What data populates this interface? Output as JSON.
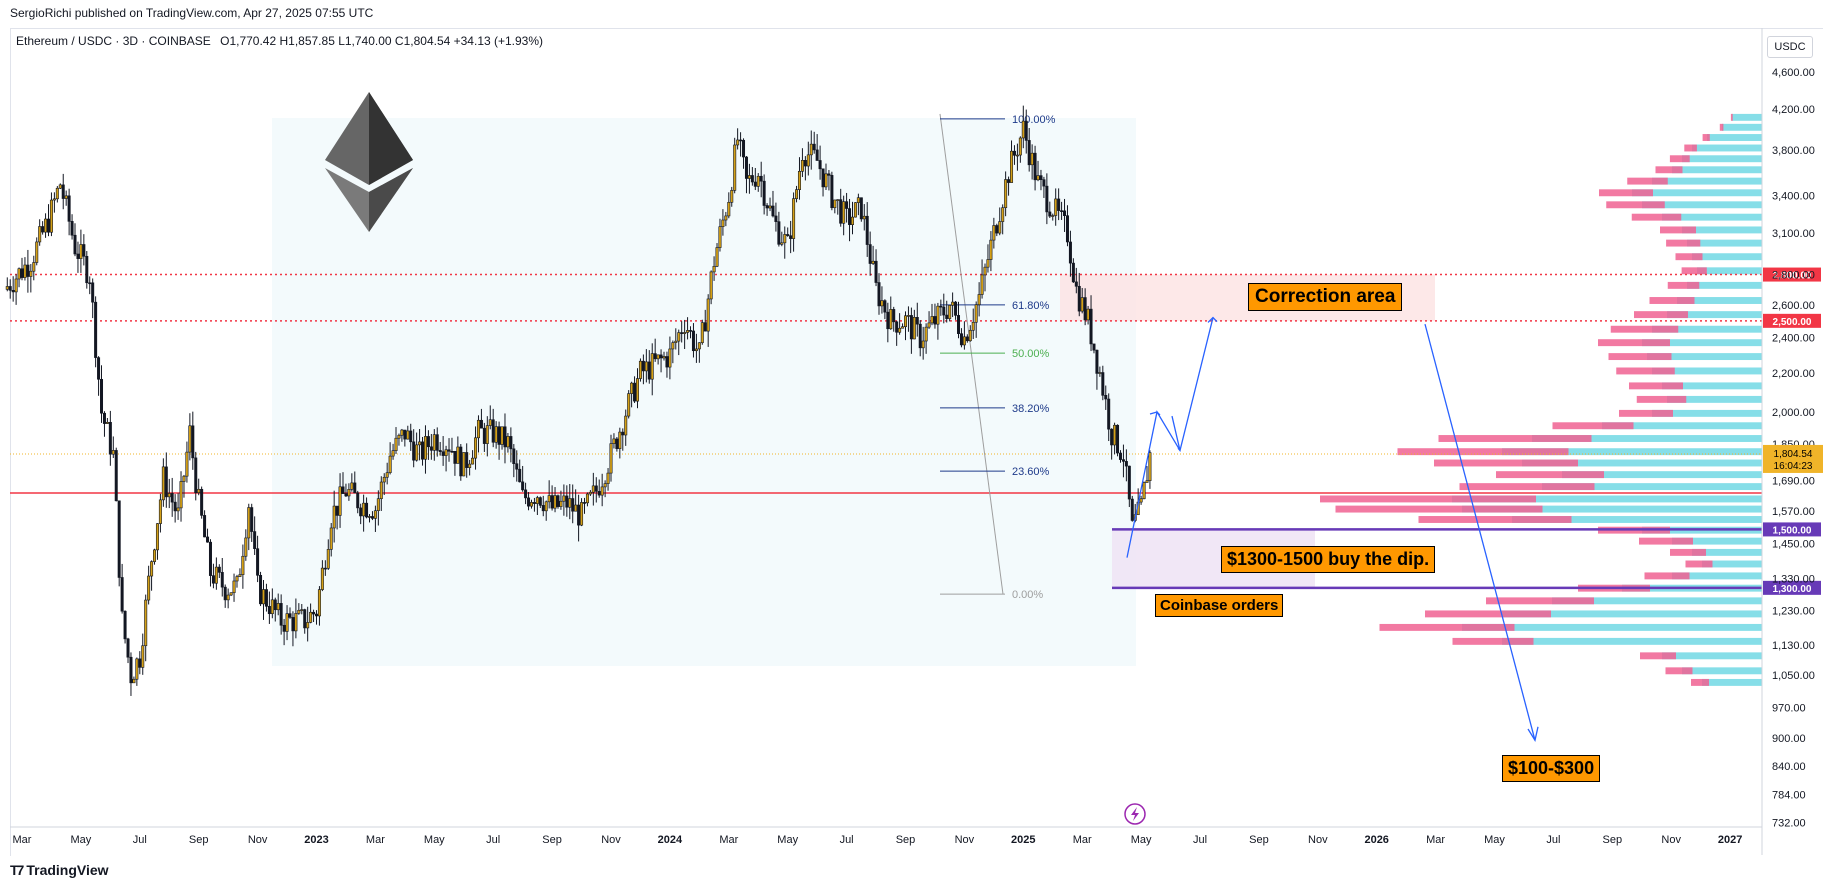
{
  "header": {
    "published": "SergioRichi published on TradingView.com, Apr 27, 2025 07:55 UTC",
    "symbol": "Ethereum / USDC",
    "interval": "3D",
    "exchange": "COINBASE",
    "ohlc": "O1,770.42  H1,857.85  L1,740.00  C1,804.54  +34.13 (+1.93%)"
  },
  "footer": {
    "brand": "TradingView"
  },
  "currency_label": "USDC",
  "chart_data": {
    "type": "candlestick",
    "scale": "log",
    "ylim": [
      732,
      4600
    ],
    "y_ticks": [
      "4,600.00",
      "4,200.00",
      "3,800.00",
      "3,400.00",
      "3,100.00",
      "2,800.00",
      "2,600.00",
      "2,400.00",
      "2,200.00",
      "2,000.00",
      "1,850.00",
      "1,690.00",
      "1,570.00",
      "1,450.00",
      "1,330.00",
      "1,230.00",
      "1,130.00",
      "1,050.00",
      "970.00",
      "900.00",
      "840.00",
      "784.00",
      "732.00"
    ],
    "y_tick_values": [
      4600,
      4200,
      3800,
      3400,
      3100,
      2800,
      2600,
      2400,
      2200,
      2000,
      1850,
      1690,
      1570,
      1450,
      1330,
      1230,
      1130,
      1050,
      970,
      900,
      840,
      784,
      732
    ],
    "x_ticks": [
      "Mar",
      "May",
      "Jul",
      "Sep",
      "Nov",
      "2023",
      "Mar",
      "May",
      "Jul",
      "Sep",
      "Nov",
      "2024",
      "Mar",
      "May",
      "Jul",
      "Sep",
      "Nov",
      "2025",
      "Mar",
      "May",
      "Jul",
      "Sep",
      "Nov",
      "2026",
      "Mar",
      "May",
      "Jul",
      "Sep",
      "Nov",
      "2027"
    ],
    "x_tick_months": [
      0,
      2,
      4,
      6,
      8,
      10,
      12,
      14,
      16,
      18,
      20,
      22,
      24,
      26,
      28,
      30,
      32,
      34,
      36,
      38,
      40,
      42,
      44,
      46,
      48,
      50,
      52,
      54,
      56,
      58
    ],
    "x_start": "2022-03",
    "price_path": [
      [
        -0.6,
        2700
      ],
      [
        0.3,
        2900
      ],
      [
        0.9,
        3200
      ],
      [
        1.3,
        3500
      ],
      [
        1.8,
        3000
      ],
      [
        2.3,
        2800
      ],
      [
        2.7,
        2000
      ],
      [
        3.1,
        1800
      ],
      [
        3.4,
        1200
      ],
      [
        3.7,
        1050
      ],
      [
        4.0,
        1100
      ],
      [
        4.4,
        1400
      ],
      [
        4.8,
        1700
      ],
      [
        5.3,
        1550
      ],
      [
        5.7,
        1900
      ],
      [
        6.0,
        1600
      ],
      [
        6.4,
        1350
      ],
      [
        6.9,
        1300
      ],
      [
        7.3,
        1300
      ],
      [
        7.7,
        1600
      ],
      [
        8.0,
        1300
      ],
      [
        8.4,
        1250
      ],
      [
        8.8,
        1200
      ],
      [
        9.2,
        1200
      ],
      [
        9.6,
        1200
      ],
      [
        10.0,
        1230
      ],
      [
        10.5,
        1550
      ],
      [
        11.0,
        1650
      ],
      [
        11.5,
        1600
      ],
      [
        12.0,
        1580
      ],
      [
        12.5,
        1800
      ],
      [
        13.0,
        1900
      ],
      [
        13.5,
        1800
      ],
      [
        14.0,
        1880
      ],
      [
        14.5,
        1850
      ],
      [
        15.0,
        1750
      ],
      [
        15.5,
        1900
      ],
      [
        16.0,
        1900
      ],
      [
        16.5,
        1850
      ],
      [
        17.0,
        1620
      ],
      [
        17.5,
        1640
      ],
      [
        18.0,
        1580
      ],
      [
        18.5,
        1600
      ],
      [
        19.0,
        1550
      ],
      [
        19.5,
        1650
      ],
      [
        20.0,
        1800
      ],
      [
        20.5,
        2000
      ],
      [
        21.0,
        2200
      ],
      [
        21.5,
        2250
      ],
      [
        22.0,
        2300
      ],
      [
        22.5,
        2500
      ],
      [
        23.0,
        2300
      ],
      [
        23.5,
        2900
      ],
      [
        24.0,
        3400
      ],
      [
        24.3,
        3900
      ],
      [
        24.6,
        3500
      ],
      [
        25.0,
        3600
      ],
      [
        25.5,
        3200
      ],
      [
        26.0,
        3000
      ],
      [
        26.5,
        3800
      ],
      [
        27.0,
        3700
      ],
      [
        27.5,
        3400
      ],
      [
        28.0,
        3200
      ],
      [
        28.5,
        3300
      ],
      [
        29.0,
        2700
      ],
      [
        29.5,
        2500
      ],
      [
        30.0,
        2500
      ],
      [
        30.5,
        2400
      ],
      [
        31.0,
        2500
      ],
      [
        31.5,
        2600
      ],
      [
        32.0,
        2400
      ],
      [
        32.5,
        2650
      ],
      [
        33.0,
        3100
      ],
      [
        33.5,
        3600
      ],
      [
        34.0,
        4000
      ],
      [
        34.5,
        3500
      ],
      [
        35.0,
        3300
      ],
      [
        35.5,
        3100
      ],
      [
        35.8,
        2700
      ],
      [
        36.2,
        2500
      ],
      [
        36.6,
        2200
      ],
      [
        37.0,
        1900
      ],
      [
        37.4,
        1800
      ],
      [
        37.7,
        1500
      ],
      [
        38.0,
        1580
      ],
      [
        38.3,
        1800
      ]
    ],
    "last_price": "1,804.54",
    "countdown": "16:04:23",
    "horizontal_levels": [
      {
        "price": 2800,
        "label": "2,800.00",
        "style": "dotted",
        "color": "#f23645"
      },
      {
        "price": 2500,
        "label": "2,500.00",
        "style": "dotted",
        "color": "#f23645"
      },
      {
        "price": 1640,
        "label": "",
        "style": "solid",
        "color": "#f23645"
      },
      {
        "price": 1500,
        "label": "1,500.00",
        "style": "solid",
        "color": "#673ab7"
      },
      {
        "price": 1300,
        "label": "1,300.00",
        "style": "solid",
        "color": "#673ab7"
      }
    ],
    "fibonacci": [
      {
        "level": "100.00%",
        "price": 4100
      },
      {
        "level": "61.80%",
        "price": 2600
      },
      {
        "level": "50.00%",
        "price": 2310
      },
      {
        "level": "38.20%",
        "price": 2020
      },
      {
        "level": "23.60%",
        "price": 1730
      },
      {
        "level": "0.00%",
        "price": 1280
      }
    ],
    "annotations": {
      "correction": "Correction area",
      "buy_dip": "$1300-1500 buy the dip.",
      "coinbase": "Coinbase orders",
      "target": "$100-$300"
    },
    "volume_profile": {
      "rows": [
        [
          4150,
          30,
          2
        ],
        [
          4050,
          40,
          4
        ],
        [
          3950,
          55,
          8
        ],
        [
          3850,
          70,
          14
        ],
        [
          3750,
          80,
          22
        ],
        [
          3650,
          90,
          30
        ],
        [
          3550,
          110,
          45
        ],
        [
          3450,
          130,
          60
        ],
        [
          3350,
          120,
          65
        ],
        [
          3250,
          100,
          55
        ],
        [
          3150,
          80,
          40
        ],
        [
          3050,
          75,
          38
        ],
        [
          2950,
          70,
          30
        ],
        [
          2850,
          65,
          28
        ],
        [
          2750,
          75,
          35
        ],
        [
          2650,
          85,
          50
        ],
        [
          2560,
          95,
          60
        ],
        [
          2470,
          110,
          75
        ],
        [
          2390,
          120,
          80
        ],
        [
          2310,
          115,
          70
        ],
        [
          2230,
          110,
          65
        ],
        [
          2150,
          100,
          60
        ],
        [
          2080,
          95,
          55
        ],
        [
          2010,
          110,
          60
        ],
        [
          1950,
          160,
          90
        ],
        [
          1890,
          230,
          170
        ],
        [
          1830,
          260,
          190
        ],
        [
          1780,
          240,
          160
        ],
        [
          1730,
          200,
          120
        ],
        [
          1680,
          220,
          150
        ],
        [
          1630,
          310,
          240
        ],
        [
          1590,
          300,
          230
        ],
        [
          1550,
          250,
          170
        ],
        [
          1510,
          120,
          80
        ],
        [
          1470,
          90,
          60
        ],
        [
          1430,
          70,
          40
        ],
        [
          1390,
          60,
          30
        ],
        [
          1350,
          90,
          50
        ],
        [
          1310,
          140,
          80
        ],
        [
          1270,
          210,
          120
        ],
        [
          1230,
          260,
          140
        ],
        [
          1190,
          300,
          150
        ],
        [
          1150,
          260,
          90
        ],
        [
          1110,
          100,
          40
        ],
        [
          1070,
          80,
          30
        ],
        [
          1040,
          60,
          20
        ]
      ]
    }
  }
}
